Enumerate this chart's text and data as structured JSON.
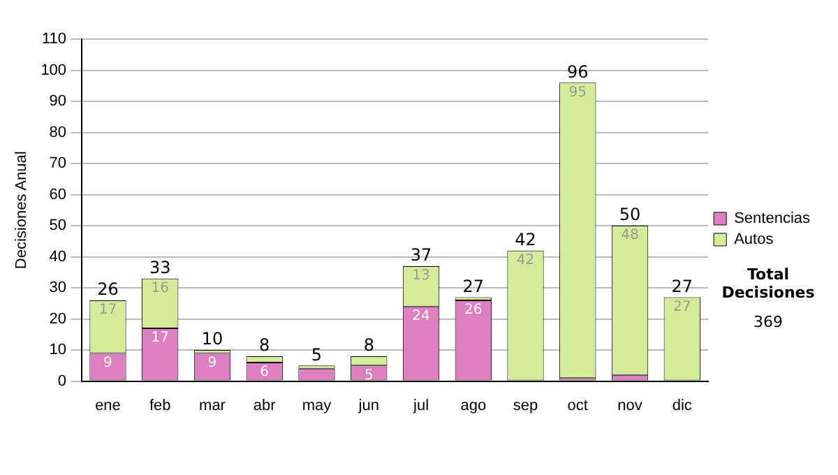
{
  "chart_data": {
    "type": "bar",
    "stacked": true,
    "ylabel": "Decisiones Anual",
    "categories": [
      "ene",
      "feb",
      "mar",
      "abr",
      "may",
      "jun",
      "jul",
      "ago",
      "sep",
      "oct",
      "nov",
      "dic"
    ],
    "series": [
      {
        "name": "Sentencias",
        "color": "#dd7fc0",
        "values": [
          9,
          17,
          9,
          6,
          4,
          5,
          24,
          26,
          0,
          1,
          2,
          0
        ],
        "value_labels": [
          "9",
          "17",
          "9",
          "6",
          null,
          "5",
          "24",
          "26",
          null,
          null,
          null,
          null
        ]
      },
      {
        "name": "Autos",
        "color": "#d4ec98",
        "values": [
          17,
          16,
          1,
          2,
          1,
          3,
          13,
          1,
          42,
          95,
          48,
          27
        ],
        "value_labels": [
          "17",
          "16",
          null,
          null,
          null,
          null,
          "13",
          null,
          "42",
          "95",
          "48",
          "27"
        ]
      }
    ],
    "totals": [
      "26",
      "33",
      "10",
      "8",
      "5",
      "8",
      "37",
      "27",
      "42",
      "96",
      "50",
      "27"
    ],
    "ylim": [
      0,
      110
    ],
    "yticks": [
      0,
      10,
      20,
      30,
      40,
      50,
      60,
      70,
      80,
      90,
      100,
      110
    ],
    "grid": "y",
    "legend": "right",
    "annotations": [
      "Total Decisiones",
      "369"
    ]
  }
}
